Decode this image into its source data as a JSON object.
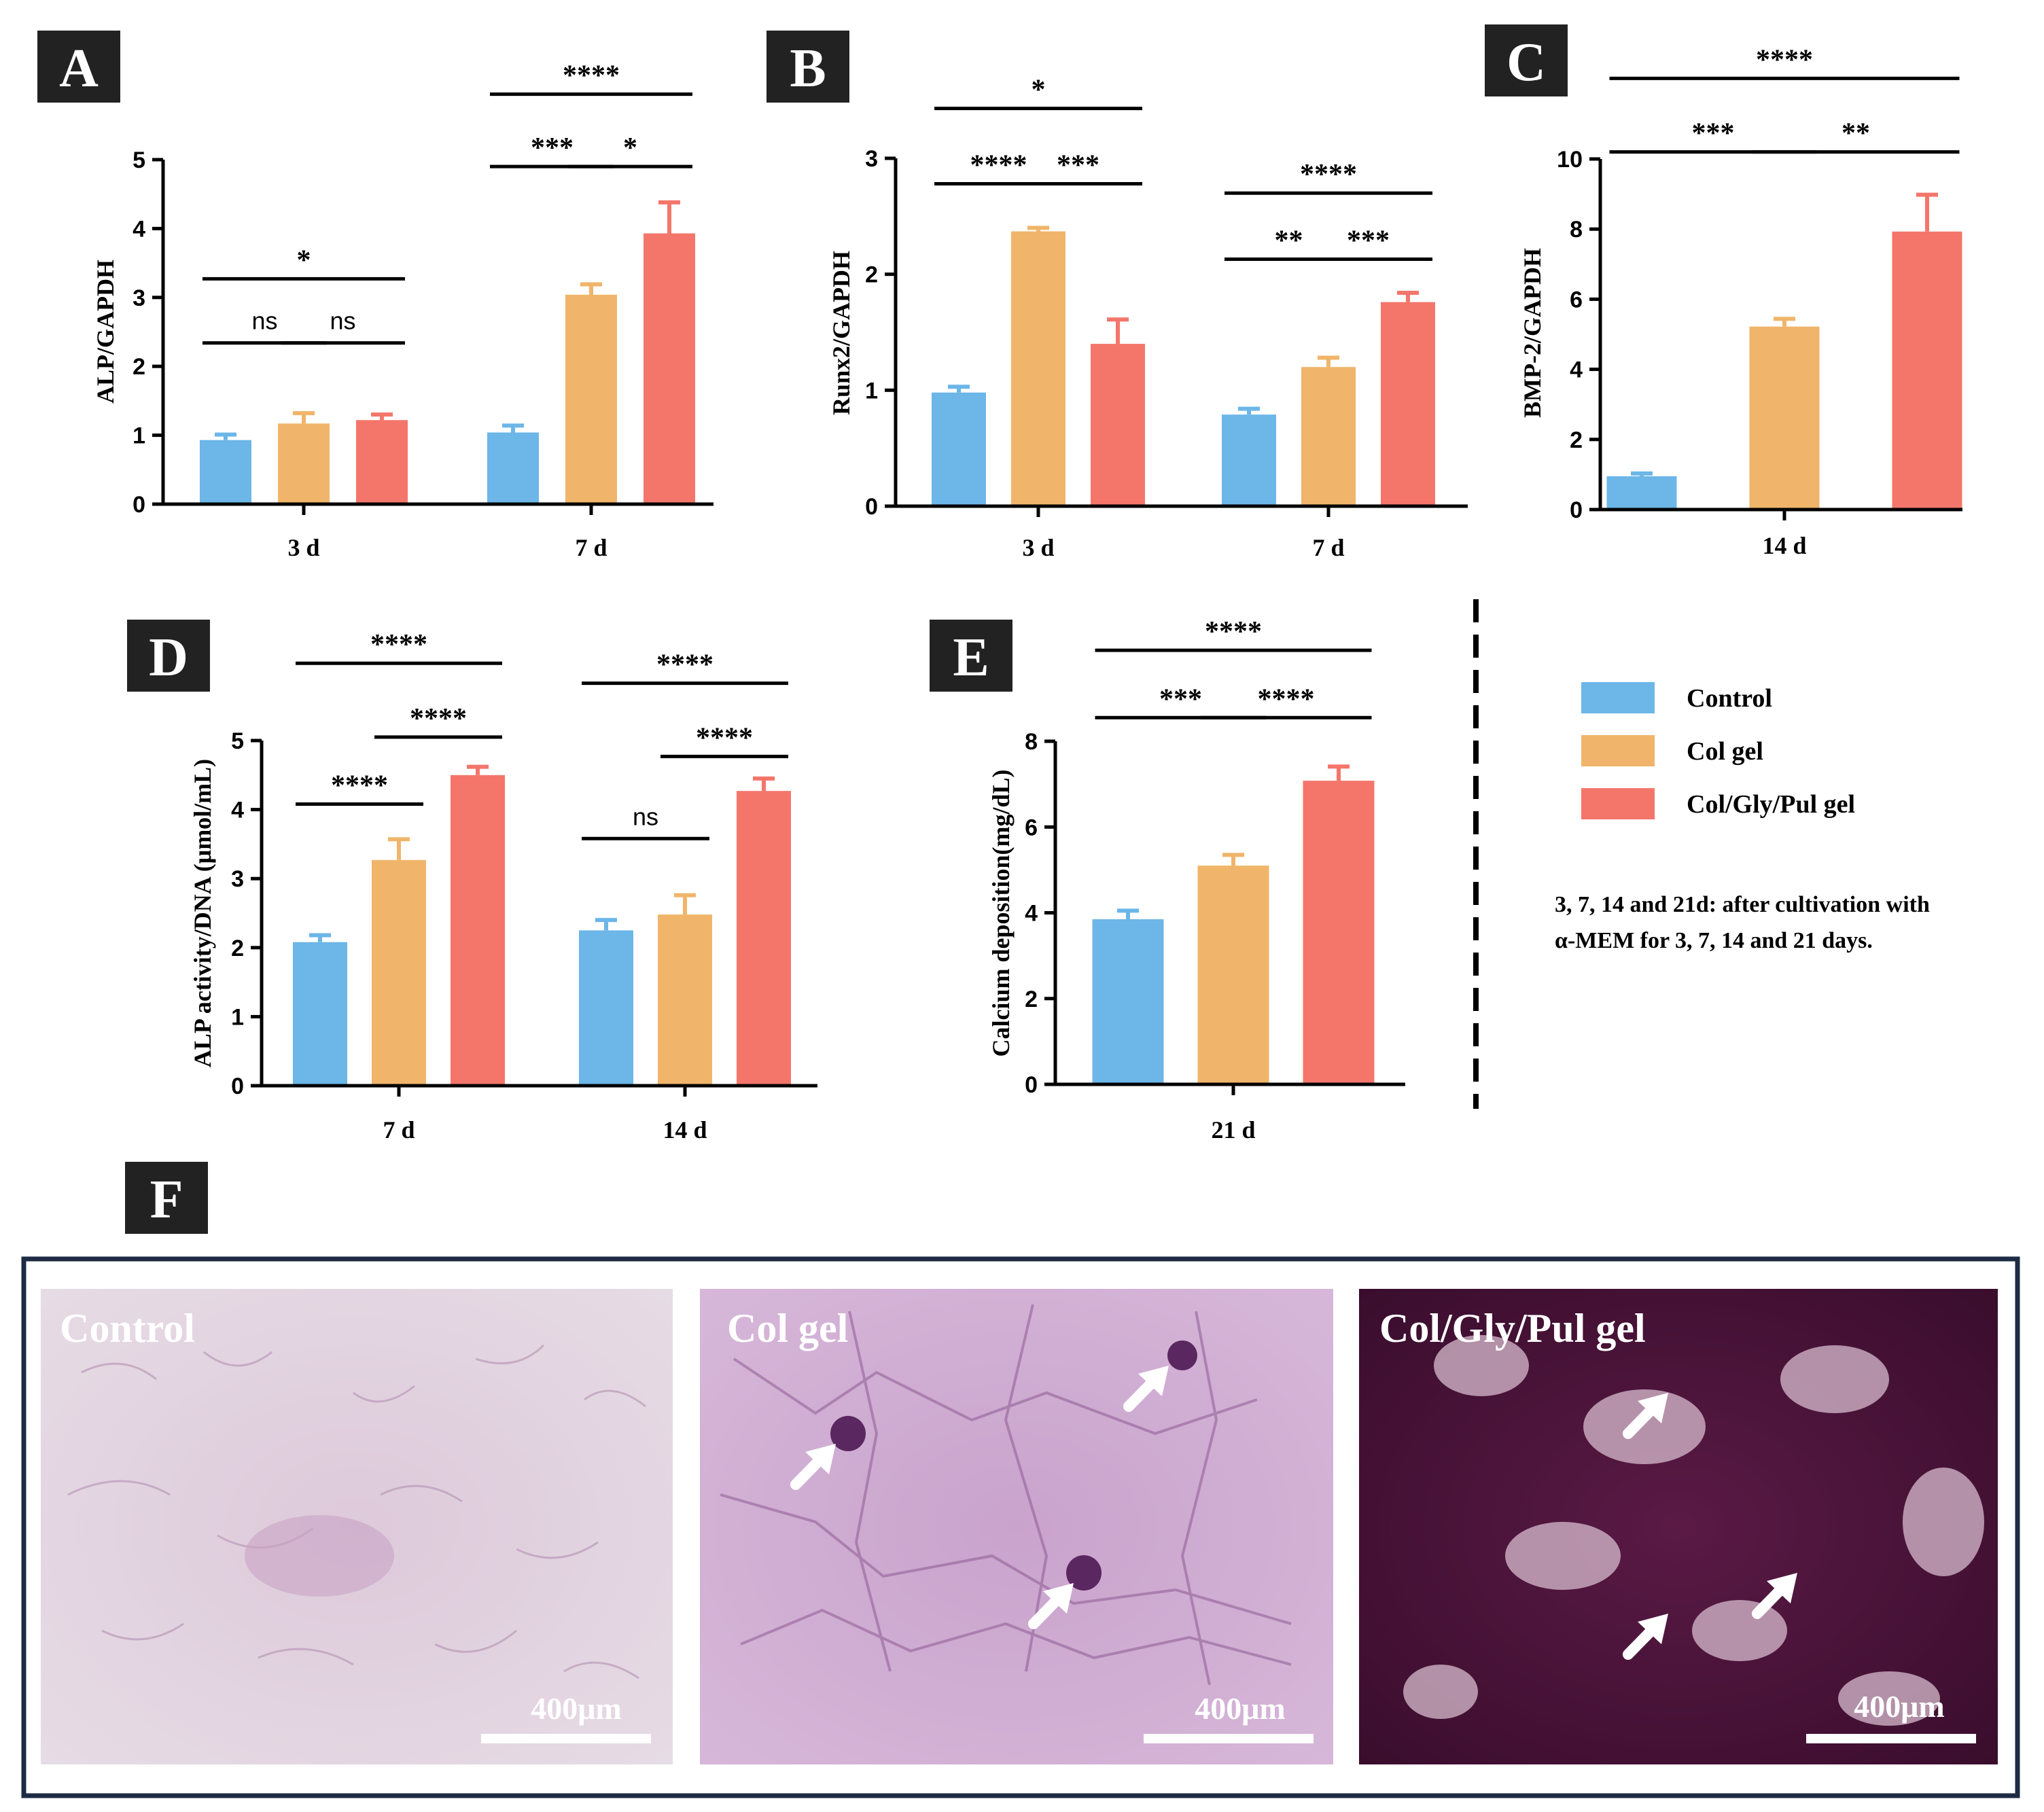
{
  "colors": {
    "Control": "#6cb6e8",
    "Col gel": "#f0b56a",
    "Col/Gly/Pul gel": "#f4766b",
    "frame": "#1d2b44"
  },
  "legend": [
    {
      "label": "Control",
      "color": "#6cb6e8"
    },
    {
      "label": "Col gel",
      "color": "#f0b56a"
    },
    {
      "label": "Col/Gly/Pul gel",
      "color": "#f4766b"
    }
  ],
  "note": {
    "line1": "3, 7, 14 and 21d: after cultivation with",
    "line2": "α-MEM for 3, 7, 14 and 21 days."
  },
  "chart_data": [
    {
      "panel": "A",
      "type": "bar",
      "ylabel": "ALP/GAPDH",
      "ylim": [
        0,
        5
      ],
      "yticks": [
        0,
        1,
        2,
        3,
        4,
        5
      ],
      "categories": [
        "3 d",
        "7 d"
      ],
      "series": [
        {
          "name": "Control",
          "values": [
            0.93,
            1.04
          ],
          "errors": [
            0.08,
            0.1
          ]
        },
        {
          "name": "Col gel",
          "values": [
            1.17,
            3.04
          ],
          "errors": [
            0.15,
            0.15
          ]
        },
        {
          "name": "Col/Gly/Pul gel",
          "values": [
            1.22,
            3.93
          ],
          "errors": [
            0.08,
            0.45
          ]
        }
      ],
      "significance": [
        {
          "cat": 0,
          "from": 0,
          "to": 2,
          "label": "*",
          "y": 3.27
        },
        {
          "cat": 0,
          "from": 0,
          "to": 1,
          "label": "ns",
          "y": 2.34
        },
        {
          "cat": 0,
          "from": 1,
          "to": 2,
          "label": "ns",
          "y": 2.34
        },
        {
          "cat": 1,
          "from": 0,
          "to": 2,
          "label": "****",
          "y": 5.95
        },
        {
          "cat": 1,
          "from": 0,
          "to": 1,
          "label": "***",
          "y": 4.9
        },
        {
          "cat": 1,
          "from": 1,
          "to": 2,
          "label": "*",
          "y": 4.9
        }
      ]
    },
    {
      "panel": "B",
      "type": "bar",
      "ylabel": "Runx2/GAPDH",
      "ylim": [
        0,
        3
      ],
      "yticks": [
        0,
        1,
        2,
        3
      ],
      "categories": [
        "3 d",
        "7 d"
      ],
      "series": [
        {
          "name": "Control",
          "values": [
            0.98,
            0.79
          ],
          "errors": [
            0.05,
            0.05
          ]
        },
        {
          "name": "Col gel",
          "values": [
            2.37,
            1.2
          ],
          "errors": [
            0.03,
            0.08
          ]
        },
        {
          "name": "Col/Gly/Pul gel",
          "values": [
            1.4,
            1.76
          ],
          "errors": [
            0.21,
            0.08
          ]
        }
      ],
      "significance": [
        {
          "cat": 0,
          "from": 0,
          "to": 2,
          "label": "*",
          "y": 3.43
        },
        {
          "cat": 0,
          "from": 0,
          "to": 1,
          "label": "****",
          "y": 2.78
        },
        {
          "cat": 0,
          "from": 1,
          "to": 2,
          "label": "***",
          "y": 2.78
        },
        {
          "cat": 1,
          "from": 0,
          "to": 2,
          "label": "****",
          "y": 2.7
        },
        {
          "cat": 1,
          "from": 0,
          "to": 1,
          "label": "**",
          "y": 2.13
        },
        {
          "cat": 1,
          "from": 1,
          "to": 2,
          "label": "***",
          "y": 2.13
        }
      ]
    },
    {
      "panel": "C",
      "type": "bar",
      "ylabel": "BMP-2/GAPDH",
      "ylim": [
        0,
        10
      ],
      "yticks": [
        0,
        2,
        4,
        6,
        8,
        10
      ],
      "categories": [
        "14 d"
      ],
      "series": [
        {
          "name": "Control",
          "values": [
            0.95
          ],
          "errors": [
            0.08
          ]
        },
        {
          "name": "Col gel",
          "values": [
            5.22
          ],
          "errors": [
            0.22
          ]
        },
        {
          "name": "Col/Gly/Pul gel",
          "values": [
            7.93
          ],
          "errors": [
            1.05
          ]
        }
      ],
      "significance": [
        {
          "cat": 0,
          "from": 0,
          "to": 2,
          "label": "****",
          "y": 12.3
        },
        {
          "cat": 0,
          "from": 0,
          "to": 1,
          "label": "***",
          "y": 10.2
        },
        {
          "cat": 0,
          "from": 1,
          "to": 2,
          "label": "**",
          "y": 10.2
        }
      ]
    },
    {
      "panel": "D",
      "type": "bar",
      "ylabel": "ALP activity/DNA (μmol/mL)",
      "ylim": [
        0,
        5
      ],
      "yticks": [
        0,
        1,
        2,
        3,
        4,
        5
      ],
      "categories": [
        "7 d",
        "14 d"
      ],
      "series": [
        {
          "name": "Control",
          "values": [
            2.08,
            2.25
          ],
          "errors": [
            0.1,
            0.15
          ]
        },
        {
          "name": "Col gel",
          "values": [
            3.27,
            2.48
          ],
          "errors": [
            0.3,
            0.28
          ]
        },
        {
          "name": "Col/Gly/Pul gel",
          "values": [
            4.5,
            4.27
          ],
          "errors": [
            0.12,
            0.18
          ]
        }
      ],
      "significance": [
        {
          "cat": 0,
          "from": 0,
          "to": 2,
          "label": "****",
          "y": 6.12
        },
        {
          "cat": 0,
          "from": 1,
          "to": 2,
          "label": "****",
          "y": 5.05
        },
        {
          "cat": 0,
          "from": 0,
          "to": 1,
          "label": "****",
          "y": 4.08
        },
        {
          "cat": 1,
          "from": 0,
          "to": 2,
          "label": "****",
          "y": 5.83
        },
        {
          "cat": 1,
          "from": 1,
          "to": 2,
          "label": "****",
          "y": 4.77
        },
        {
          "cat": 1,
          "from": 0,
          "to": 1,
          "label": "ns",
          "y": 3.58
        }
      ]
    },
    {
      "panel": "E",
      "type": "bar",
      "ylabel": "Calcium deposition(mg/dL)",
      "ylim": [
        0,
        8
      ],
      "yticks": [
        0,
        2,
        4,
        6,
        8
      ],
      "categories": [
        "21 d"
      ],
      "series": [
        {
          "name": "Control",
          "values": [
            3.85
          ],
          "errors": [
            0.2
          ]
        },
        {
          "name": "Col gel",
          "values": [
            5.1
          ],
          "errors": [
            0.25
          ]
        },
        {
          "name": "Col/Gly/Pul gel",
          "values": [
            7.08
          ],
          "errors": [
            0.33
          ]
        }
      ],
      "significance": [
        {
          "cat": 0,
          "from": 0,
          "to": 2,
          "label": "****",
          "y": 10.12
        },
        {
          "cat": 0,
          "from": 0,
          "to": 1,
          "label": "***",
          "y": 8.55
        },
        {
          "cat": 0,
          "from": 1,
          "to": 2,
          "label": "****",
          "y": 8.55
        }
      ]
    }
  ],
  "micrographs": {
    "panel": "F",
    "images": [
      {
        "label": "Control",
        "scale": "400μm"
      },
      {
        "label": "Col gel",
        "scale": "400μm"
      },
      {
        "label": "Col/Gly/Pul gel",
        "scale": "400μm"
      }
    ]
  }
}
